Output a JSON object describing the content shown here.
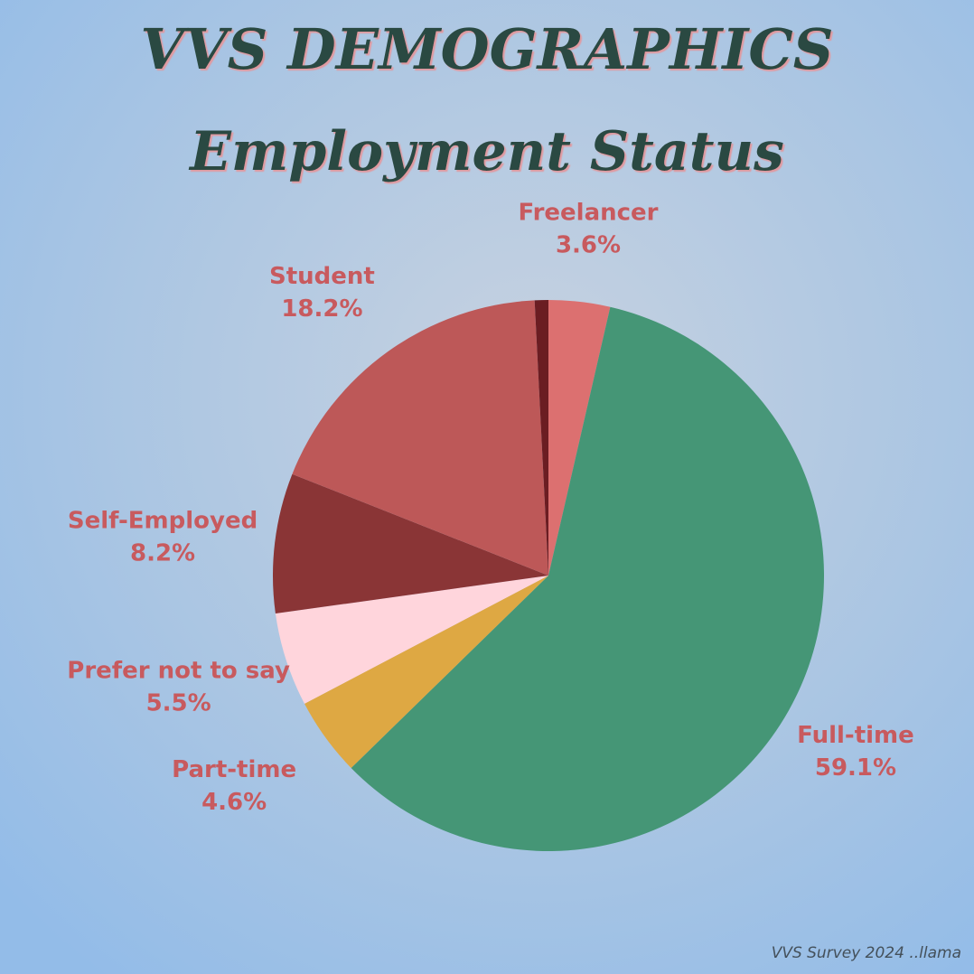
{
  "chart_data": {
    "type": "pie",
    "title": "VVS DEMOGRAPHICS",
    "subtitle": "Employment Status",
    "footnote": "VVS Survey 2024 ..llama",
    "categories": [
      "Freelancer",
      "Full-time",
      "Part-time",
      "Prefer not to say",
      "Self-Employed",
      "Student",
      null
    ],
    "values": [
      3.6,
      59.1,
      4.6,
      5.5,
      8.2,
      18.2,
      0.8
    ],
    "value_labels": [
      "3.6%",
      "59.1%",
      "4.6%",
      "5.5%",
      "8.2%",
      "18.2%",
      null
    ],
    "colors": [
      "#dc7070",
      "#459676",
      "#dea843",
      "#ffd5dc",
      "#8a3536",
      "#bd5858",
      "#6b1d22"
    ]
  }
}
